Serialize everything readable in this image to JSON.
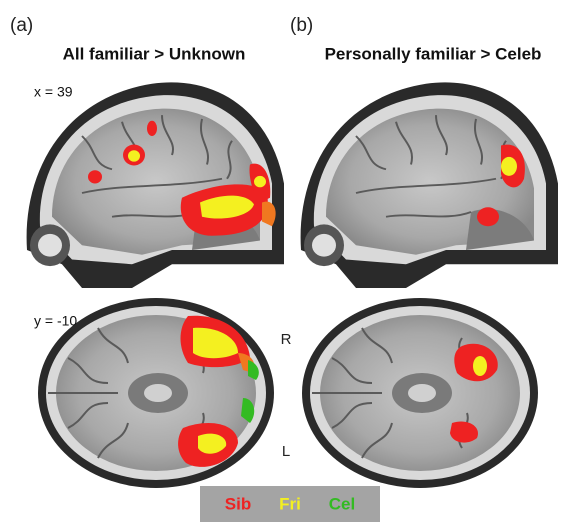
{
  "panels": [
    {
      "label": "(a)",
      "title": "All familiar > Unknown"
    },
    {
      "label": "(b)",
      "title": "Personally familiar > Celeb"
    }
  ],
  "slices": [
    "x = 39",
    "y = -10"
  ],
  "hemispheres": [
    "R",
    "L"
  ],
  "legend": [
    {
      "name": "Sib",
      "color": "#ee2222"
    },
    {
      "name": "Fri",
      "color": "#f4f020"
    },
    {
      "name": "Cel",
      "color": "#33bb22"
    }
  ]
}
